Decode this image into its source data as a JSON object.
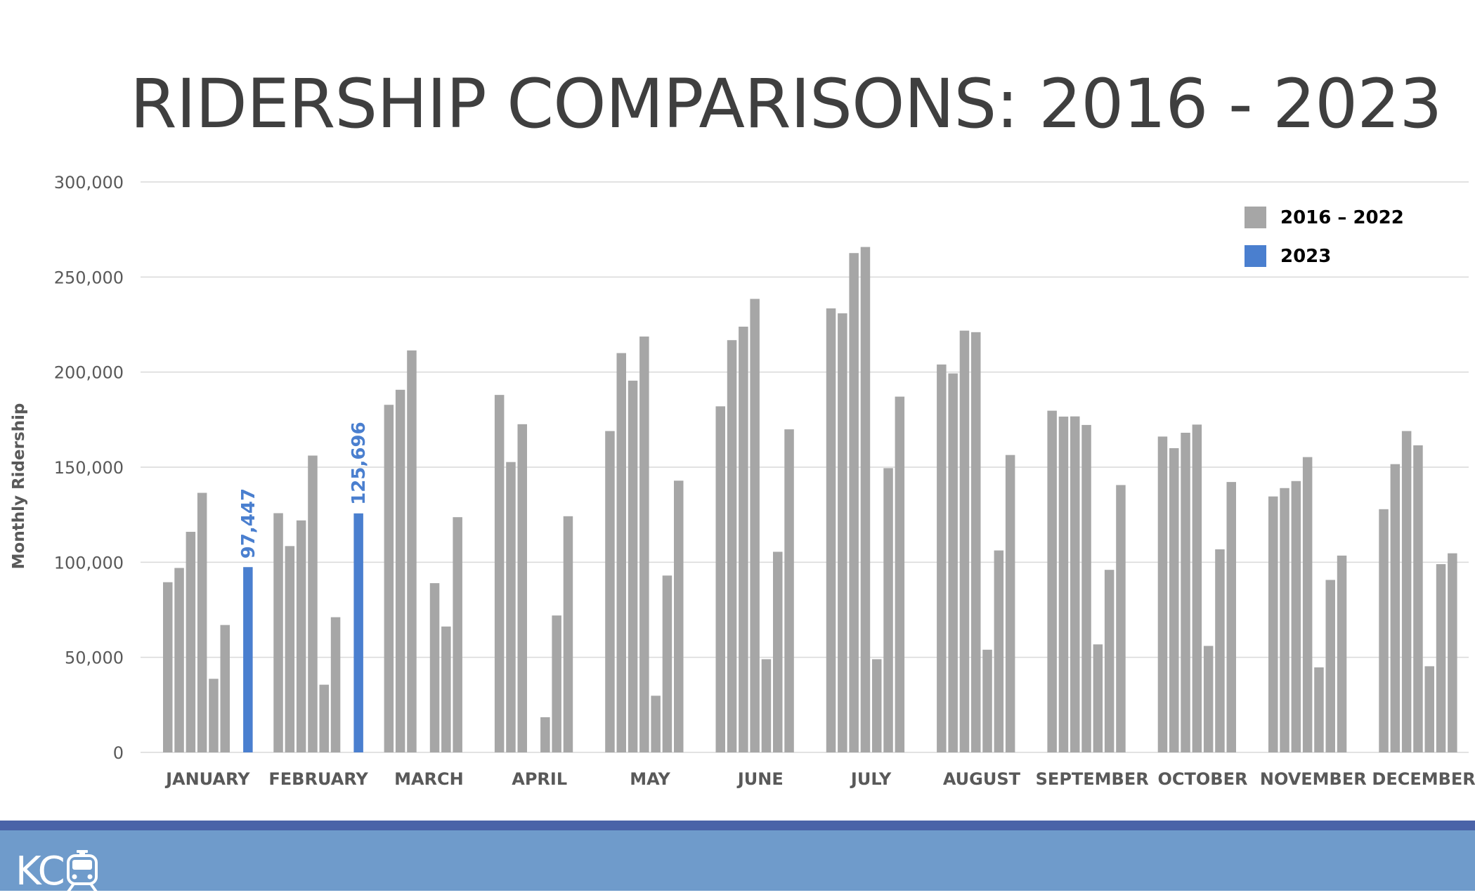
{
  "title": "RIDERSHIP COMPARISONS: 2016 - 2023",
  "colors": {
    "historical": "#a6a6a6",
    "current": "#4a7fcf",
    "grid": "#d9d9d9",
    "footer": "#6f9bcb",
    "footer_stripe": "#4a63a8"
  },
  "footer": {
    "logo_text": "KC",
    "logo_icon": "streetcar-icon"
  },
  "chart_data": {
    "type": "bar",
    "ylabel": "Monthly Ridership",
    "xlabel": "",
    "ylim": [
      0,
      300000
    ],
    "yticks": [
      0,
      50000,
      100000,
      150000,
      200000,
      250000,
      300000
    ],
    "ytick_labels": [
      "0",
      "50,000",
      "100,000",
      "150,000",
      "200,000",
      "250,000",
      "300,000"
    ],
    "grid": true,
    "legend": {
      "position": "top-right",
      "items": [
        {
          "label": "2016 – 2022",
          "color": "#a6a6a6"
        },
        {
          "label": "2023",
          "color": "#4a7fcf"
        }
      ]
    },
    "categories": [
      "JANUARY",
      "FEBRUARY",
      "MARCH",
      "APRIL",
      "MAY",
      "JUNE",
      "JULY",
      "AUGUST",
      "SEPTEMBER",
      "OCTOBER",
      "NOVEMBER",
      "DECEMBER"
    ],
    "series": [
      {
        "year": 2016,
        "group": "2016 – 2022",
        "values": [
          89500,
          125800,
          182800,
          188000,
          169000,
          182000,
          233500,
          204000,
          179700,
          166100,
          134600,
          127900
        ]
      },
      {
        "year": 2017,
        "group": "2016 – 2022",
        "values": [
          97000,
          108500,
          190700,
          152700,
          210000,
          216800,
          230900,
          199300,
          176600,
          160000,
          139000,
          151600
        ]
      },
      {
        "year": 2018,
        "group": "2016 – 2022",
        "values": [
          116000,
          122000,
          211400,
          172600,
          195500,
          223900,
          262600,
          221800,
          176700,
          168100,
          142700,
          169000
        ]
      },
      {
        "year": 2019,
        "group": "2016 – 2022",
        "values": [
          136500,
          156100,
          0,
          0,
          218700,
          238500,
          265800,
          221000,
          172200,
          172400,
          155300,
          161500
        ]
      },
      {
        "year": 2020,
        "group": "2016 – 2022",
        "values": [
          38700,
          35600,
          89000,
          18500,
          29800,
          49000,
          49000,
          54000,
          56800,
          56000,
          44700,
          45300
        ]
      },
      {
        "year": 2021,
        "group": "2016 – 2022",
        "values": [
          67000,
          71100,
          66200,
          72000,
          93000,
          105500,
          149500,
          106200,
          96000,
          106800,
          90700,
          99000
        ]
      },
      {
        "year": 2022,
        "group": "2016 – 2022",
        "values": [
          0,
          0,
          123700,
          124200,
          142900,
          169900,
          187100,
          156400,
          140600,
          142200,
          103500,
          104700
        ]
      },
      {
        "year": 2023,
        "group": "2023",
        "values": [
          97447,
          125696,
          null,
          null,
          null,
          null,
          null,
          null,
          null,
          null,
          null,
          null
        ],
        "data_labels": [
          "97,447",
          "125,696",
          null,
          null,
          null,
          null,
          null,
          null,
          null,
          null,
          null,
          null
        ]
      }
    ]
  }
}
